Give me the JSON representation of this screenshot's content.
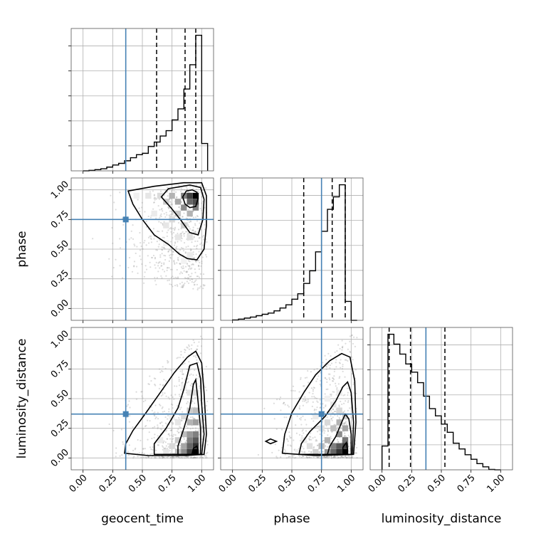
{
  "chart_data": {
    "type": "corner",
    "parameters": [
      "geocent_time",
      "phase",
      "luminosity_distance"
    ],
    "truths": {
      "geocent_time": 0.36,
      "phase": 0.75,
      "luminosity_distance": 0.37
    },
    "truth_color": "#4682b4",
    "axis_range": [
      -0.1,
      1.1
    ],
    "tick_values": [
      0.0,
      0.25,
      0.5,
      0.75,
      1.0
    ],
    "tick_labels": [
      "0.00",
      "0.25",
      "0.50",
      "0.75",
      "1.00"
    ],
    "grid": true,
    "histograms": {
      "geocent_time": {
        "bin_edges": [
          0.0,
          0.05,
          0.1,
          0.15,
          0.2,
          0.25,
          0.3,
          0.35,
          0.4,
          0.45,
          0.5,
          0.55,
          0.6,
          0.65,
          0.7,
          0.75,
          0.8,
          0.85,
          0.9,
          0.95,
          1.0,
          1.05
        ],
        "counts": [
          0.0,
          0.2,
          0.5,
          0.9,
          1.6,
          2.5,
          3.2,
          4.3,
          5.6,
          6.9,
          7.5,
          10.4,
          12.3,
          14.9,
          17.2,
          21.8,
          26.5,
          35.0,
          45.4,
          58.0,
          11.7
        ],
        "quantiles": [
          0.62,
          0.86,
          0.95
        ]
      },
      "phase": {
        "bin_edges": [
          0.0,
          0.05,
          0.1,
          0.15,
          0.2,
          0.25,
          0.3,
          0.35,
          0.4,
          0.45,
          0.5,
          0.55,
          0.6,
          0.65,
          0.7,
          0.75,
          0.8,
          0.85,
          0.9,
          0.95,
          1.0,
          1.05
        ],
        "counts": [
          0.2,
          0.6,
          1.1,
          1.6,
          2.3,
          3.0,
          3.6,
          4.7,
          6.1,
          7.7,
          10.5,
          13.2,
          18.3,
          24.6,
          34.0,
          44.2,
          55.1,
          61.3,
          67.3,
          9.4,
          0.0
        ],
        "quantiles": [
          0.6,
          0.84,
          0.95
        ]
      },
      "luminosity_distance": {
        "bin_edges": [
          0.0,
          0.05,
          0.1,
          0.15,
          0.2,
          0.25,
          0.3,
          0.35,
          0.4,
          0.45,
          0.5,
          0.55,
          0.6,
          0.65,
          0.7,
          0.75,
          0.8,
          0.85,
          0.9,
          0.95,
          1.0
        ],
        "counts": [
          12.0,
          68.3,
          63.3,
          58.3,
          53.3,
          49.2,
          43.9,
          37.1,
          30.8,
          27.2,
          23.0,
          18.9,
          13.4,
          10.5,
          7.6,
          5.3,
          3.1,
          1.5,
          0.2,
          0.0
        ],
        "quantiles": [
          0.06,
          0.24,
          0.53
        ]
      }
    },
    "joint_panels": [
      {
        "x": "geocent_time",
        "y": "phase",
        "density_cells": [
          [
            0.95,
            0.95,
            1.0
          ],
          [
            0.9,
            0.95,
            0.75
          ],
          [
            0.95,
            0.9,
            0.7
          ],
          [
            0.9,
            0.9,
            0.6
          ],
          [
            0.85,
            0.95,
            0.5
          ],
          [
            0.85,
            0.85,
            0.45
          ],
          [
            0.95,
            0.85,
            0.5
          ],
          [
            0.8,
            0.9,
            0.35
          ],
          [
            0.75,
            0.95,
            0.3
          ],
          [
            0.9,
            0.8,
            0.3
          ],
          [
            0.8,
            0.8,
            0.22
          ],
          [
            0.7,
            0.9,
            0.2
          ],
          [
            0.85,
            0.7,
            0.18
          ],
          [
            0.65,
            0.95,
            0.14
          ],
          [
            0.75,
            0.75,
            0.14
          ],
          [
            0.9,
            0.6,
            0.12
          ],
          [
            0.55,
            0.95,
            0.1
          ],
          [
            0.7,
            0.7,
            0.1
          ],
          [
            0.8,
            0.6,
            0.1
          ],
          [
            0.9,
            0.45,
            0.08
          ],
          [
            0.6,
            0.8,
            0.08
          ],
          [
            0.45,
            0.95,
            0.06
          ],
          [
            0.7,
            0.55,
            0.06
          ],
          [
            0.85,
            0.4,
            0.05
          ]
        ],
        "contours": [
          [
            [
              0.92,
              1.0
            ],
            [
              0.96,
              0.98
            ],
            [
              0.97,
              0.93
            ],
            [
              0.95,
              0.86
            ],
            [
              0.9,
              0.85
            ],
            [
              0.86,
              0.88
            ],
            [
              0.84,
              0.94
            ],
            [
              0.87,
              0.99
            ],
            [
              0.92,
              1.0
            ]
          ],
          [
            [
              0.72,
              1.01
            ],
            [
              0.9,
              1.04
            ],
            [
              0.99,
              1.02
            ],
            [
              1.02,
              0.92
            ],
            [
              1.01,
              0.75
            ],
            [
              0.97,
              0.62
            ],
            [
              0.9,
              0.64
            ],
            [
              0.82,
              0.75
            ],
            [
              0.74,
              0.85
            ],
            [
              0.66,
              0.94
            ],
            [
              0.72,
              1.01
            ]
          ],
          [
            [
              0.38,
              0.99
            ],
            [
              0.6,
              1.03
            ],
            [
              0.85,
              1.06
            ],
            [
              1.0,
              1.06
            ],
            [
              1.04,
              0.95
            ],
            [
              1.04,
              0.7
            ],
            [
              1.02,
              0.5
            ],
            [
              0.96,
              0.41
            ],
            [
              0.88,
              0.42
            ],
            [
              0.81,
              0.46
            ],
            [
              0.72,
              0.54
            ],
            [
              0.6,
              0.62
            ],
            [
              0.5,
              0.75
            ],
            [
              0.42,
              0.88
            ],
            [
              0.38,
              0.99
            ]
          ]
        ]
      },
      {
        "x": "geocent_time",
        "y": "luminosity_distance",
        "density_cells": [
          [
            0.95,
            0.05,
            1.0
          ],
          [
            0.95,
            0.1,
            0.8
          ],
          [
            0.9,
            0.05,
            0.75
          ],
          [
            0.95,
            0.15,
            0.65
          ],
          [
            0.9,
            0.1,
            0.6
          ],
          [
            0.95,
            0.2,
            0.5
          ],
          [
            0.9,
            0.15,
            0.5
          ],
          [
            0.85,
            0.05,
            0.45
          ],
          [
            0.9,
            0.2,
            0.4
          ],
          [
            0.95,
            0.3,
            0.38
          ],
          [
            0.85,
            0.1,
            0.35
          ],
          [
            0.9,
            0.3,
            0.3
          ],
          [
            0.8,
            0.05,
            0.25
          ],
          [
            0.85,
            0.2,
            0.25
          ],
          [
            0.95,
            0.4,
            0.25
          ],
          [
            0.8,
            0.15,
            0.2
          ],
          [
            0.9,
            0.4,
            0.2
          ],
          [
            0.75,
            0.1,
            0.15
          ],
          [
            0.85,
            0.35,
            0.15
          ],
          [
            0.95,
            0.55,
            0.12
          ],
          [
            0.7,
            0.05,
            0.1
          ],
          [
            0.8,
            0.3,
            0.1
          ],
          [
            0.9,
            0.55,
            0.1
          ],
          [
            0.65,
            0.15,
            0.08
          ],
          [
            0.75,
            0.35,
            0.06
          ],
          [
            0.85,
            0.6,
            0.06
          ]
        ],
        "contours": [
          [
            [
              0.92,
              0.04
            ],
            [
              0.97,
              0.06
            ],
            [
              0.96,
              0.1
            ],
            [
              0.93,
              0.08
            ],
            [
              0.92,
              0.04
            ]
          ],
          [
            [
              0.8,
              0.03
            ],
            [
              0.99,
              0.03
            ],
            [
              0.99,
              0.25
            ],
            [
              0.97,
              0.47
            ],
            [
              0.95,
              0.66
            ],
            [
              0.93,
              0.62
            ],
            [
              0.9,
              0.42
            ],
            [
              0.85,
              0.25
            ],
            [
              0.8,
              0.1
            ],
            [
              0.8,
              0.03
            ]
          ],
          [
            [
              0.6,
              0.03
            ],
            [
              1.0,
              0.03
            ],
            [
              1.02,
              0.2
            ],
            [
              1.0,
              0.45
            ],
            [
              0.99,
              0.67
            ],
            [
              0.96,
              0.8
            ],
            [
              0.9,
              0.78
            ],
            [
              0.85,
              0.58
            ],
            [
              0.8,
              0.42
            ],
            [
              0.7,
              0.25
            ],
            [
              0.6,
              0.12
            ],
            [
              0.6,
              0.03
            ]
          ],
          [
            [
              0.35,
              0.04
            ],
            [
              0.55,
              0.02
            ],
            [
              0.85,
              0.02
            ],
            [
              1.02,
              0.03
            ],
            [
              1.04,
              0.2
            ],
            [
              1.02,
              0.55
            ],
            [
              1.0,
              0.8
            ],
            [
              0.95,
              0.9
            ],
            [
              0.88,
              0.85
            ],
            [
              0.77,
              0.72
            ],
            [
              0.65,
              0.55
            ],
            [
              0.53,
              0.38
            ],
            [
              0.42,
              0.23
            ],
            [
              0.36,
              0.12
            ],
            [
              0.35,
              0.04
            ]
          ]
        ]
      },
      {
        "x": "phase",
        "y": "luminosity_distance",
        "density_cells": [
          [
            0.95,
            0.05,
            1.0
          ],
          [
            0.9,
            0.05,
            0.8
          ],
          [
            0.95,
            0.1,
            0.75
          ],
          [
            0.9,
            0.1,
            0.65
          ],
          [
            0.85,
            0.05,
            0.6
          ],
          [
            0.95,
            0.15,
            0.55
          ],
          [
            0.85,
            0.1,
            0.5
          ],
          [
            0.9,
            0.2,
            0.45
          ],
          [
            0.8,
            0.05,
            0.4
          ],
          [
            0.95,
            0.25,
            0.35
          ],
          [
            0.8,
            0.15,
            0.3
          ],
          [
            0.9,
            0.3,
            0.3
          ],
          [
            0.75,
            0.1,
            0.25
          ],
          [
            0.85,
            0.25,
            0.25
          ],
          [
            0.95,
            0.35,
            0.2
          ],
          [
            0.7,
            0.05,
            0.18
          ],
          [
            0.8,
            0.3,
            0.15
          ],
          [
            0.9,
            0.4,
            0.15
          ],
          [
            0.65,
            0.1,
            0.12
          ],
          [
            0.75,
            0.25,
            0.12
          ],
          [
            0.85,
            0.45,
            0.1
          ],
          [
            0.6,
            0.15,
            0.08
          ],
          [
            0.7,
            0.35,
            0.08
          ],
          [
            0.9,
            0.55,
            0.08
          ],
          [
            0.55,
            0.05,
            0.06
          ],
          [
            0.8,
            0.5,
            0.06
          ]
        ],
        "contours": [
          [
            [
              0.93,
              0.05
            ],
            [
              0.97,
              0.06
            ],
            [
              0.96,
              0.13
            ],
            [
              0.93,
              0.09
            ],
            [
              0.93,
              0.05
            ]
          ],
          [
            [
              0.8,
              0.03
            ],
            [
              1.0,
              0.03
            ],
            [
              1.0,
              0.2
            ],
            [
              0.98,
              0.33
            ],
            [
              0.95,
              0.37
            ],
            [
              0.92,
              0.3
            ],
            [
              0.87,
              0.18
            ],
            [
              0.82,
              0.1
            ],
            [
              0.8,
              0.03
            ]
          ],
          [
            [
              0.56,
              0.03
            ],
            [
              1.01,
              0.03
            ],
            [
              1.02,
              0.3
            ],
            [
              1.0,
              0.55
            ],
            [
              0.97,
              0.64
            ],
            [
              0.93,
              0.6
            ],
            [
              0.87,
              0.48
            ],
            [
              0.78,
              0.35
            ],
            [
              0.65,
              0.22
            ],
            [
              0.58,
              0.12
            ],
            [
              0.56,
              0.03
            ]
          ],
          [
            [
              0.42,
              0.04
            ],
            [
              0.7,
              0.02
            ],
            [
              1.02,
              0.03
            ],
            [
              1.04,
              0.3
            ],
            [
              1.03,
              0.65
            ],
            [
              0.99,
              0.85
            ],
            [
              0.92,
              0.88
            ],
            [
              0.82,
              0.82
            ],
            [
              0.7,
              0.7
            ],
            [
              0.6,
              0.55
            ],
            [
              0.5,
              0.38
            ],
            [
              0.44,
              0.2
            ],
            [
              0.42,
              0.04
            ]
          ],
          [
            [
              0.28,
              0.14
            ],
            [
              0.32,
              0.16
            ],
            [
              0.37,
              0.14
            ],
            [
              0.32,
              0.12
            ],
            [
              0.28,
              0.14
            ]
          ]
        ]
      }
    ]
  }
}
